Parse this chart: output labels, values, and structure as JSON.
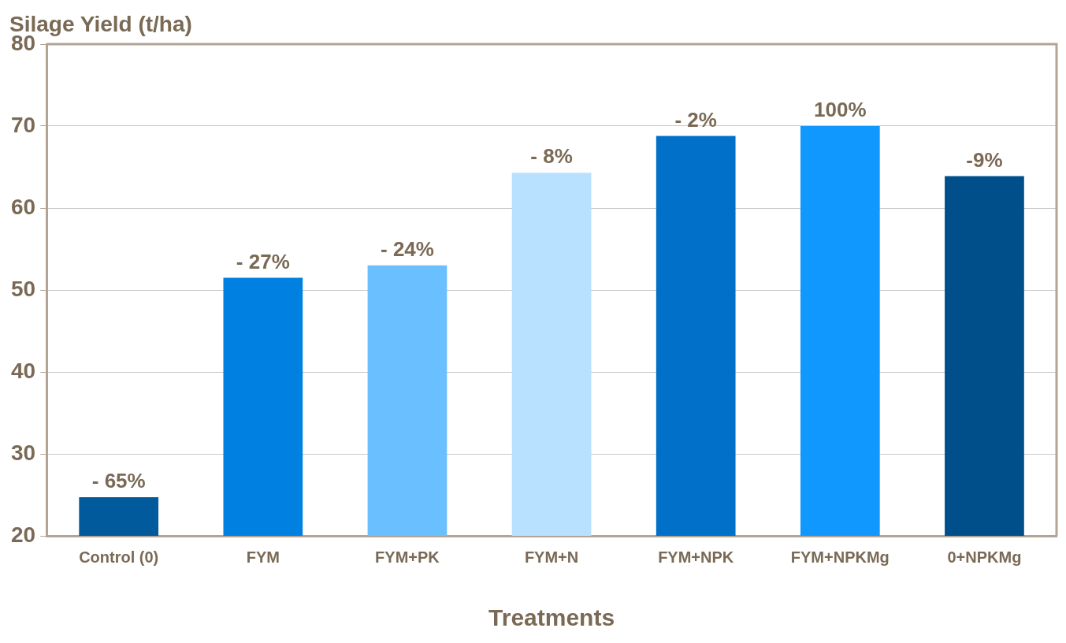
{
  "chart_data": {
    "type": "bar",
    "ylabel": "Silage Yield (t/ha)",
    "xlabel": "Treatments",
    "categories": [
      "Control (0)",
      "FYM",
      "FYM+PK",
      "FYM+N",
      "FYM+NPK",
      "FYM+NPKMg",
      "0+NPKMg"
    ],
    "values": [
      24.7,
      51.5,
      53.0,
      64.3,
      68.8,
      70.0,
      63.9
    ],
    "colors": [
      "#005a9c",
      "#0080e0",
      "#6abfff",
      "#b8e0ff",
      "#0070c8",
      "#1098ff",
      "#004f8a"
    ],
    "annotations": [
      {
        "text": "- 65%",
        "x": "Control (0)",
        "y": 24.7
      },
      {
        "text": "- 27%",
        "x": "FYM",
        "y": 51.5
      },
      {
        "text": "- 24%",
        "x": "FYM+PK",
        "y": 53.0
      },
      {
        "text": "- 8%",
        "x": "FYM+N",
        "y": 64.3
      },
      {
        "text": "- 2%",
        "x": "FYM+NPK",
        "y": 68.8
      },
      {
        "text": "100%",
        "x": "FYM+NPKMg",
        "y": 70.0
      },
      {
        "text": "-9%",
        "x": "0+NPKMg",
        "y": 63.9
      }
    ],
    "ylim": [
      20,
      80
    ],
    "yticks": [
      20,
      30,
      40,
      50,
      60,
      70,
      80
    ],
    "grid": "y",
    "legend": false
  }
}
